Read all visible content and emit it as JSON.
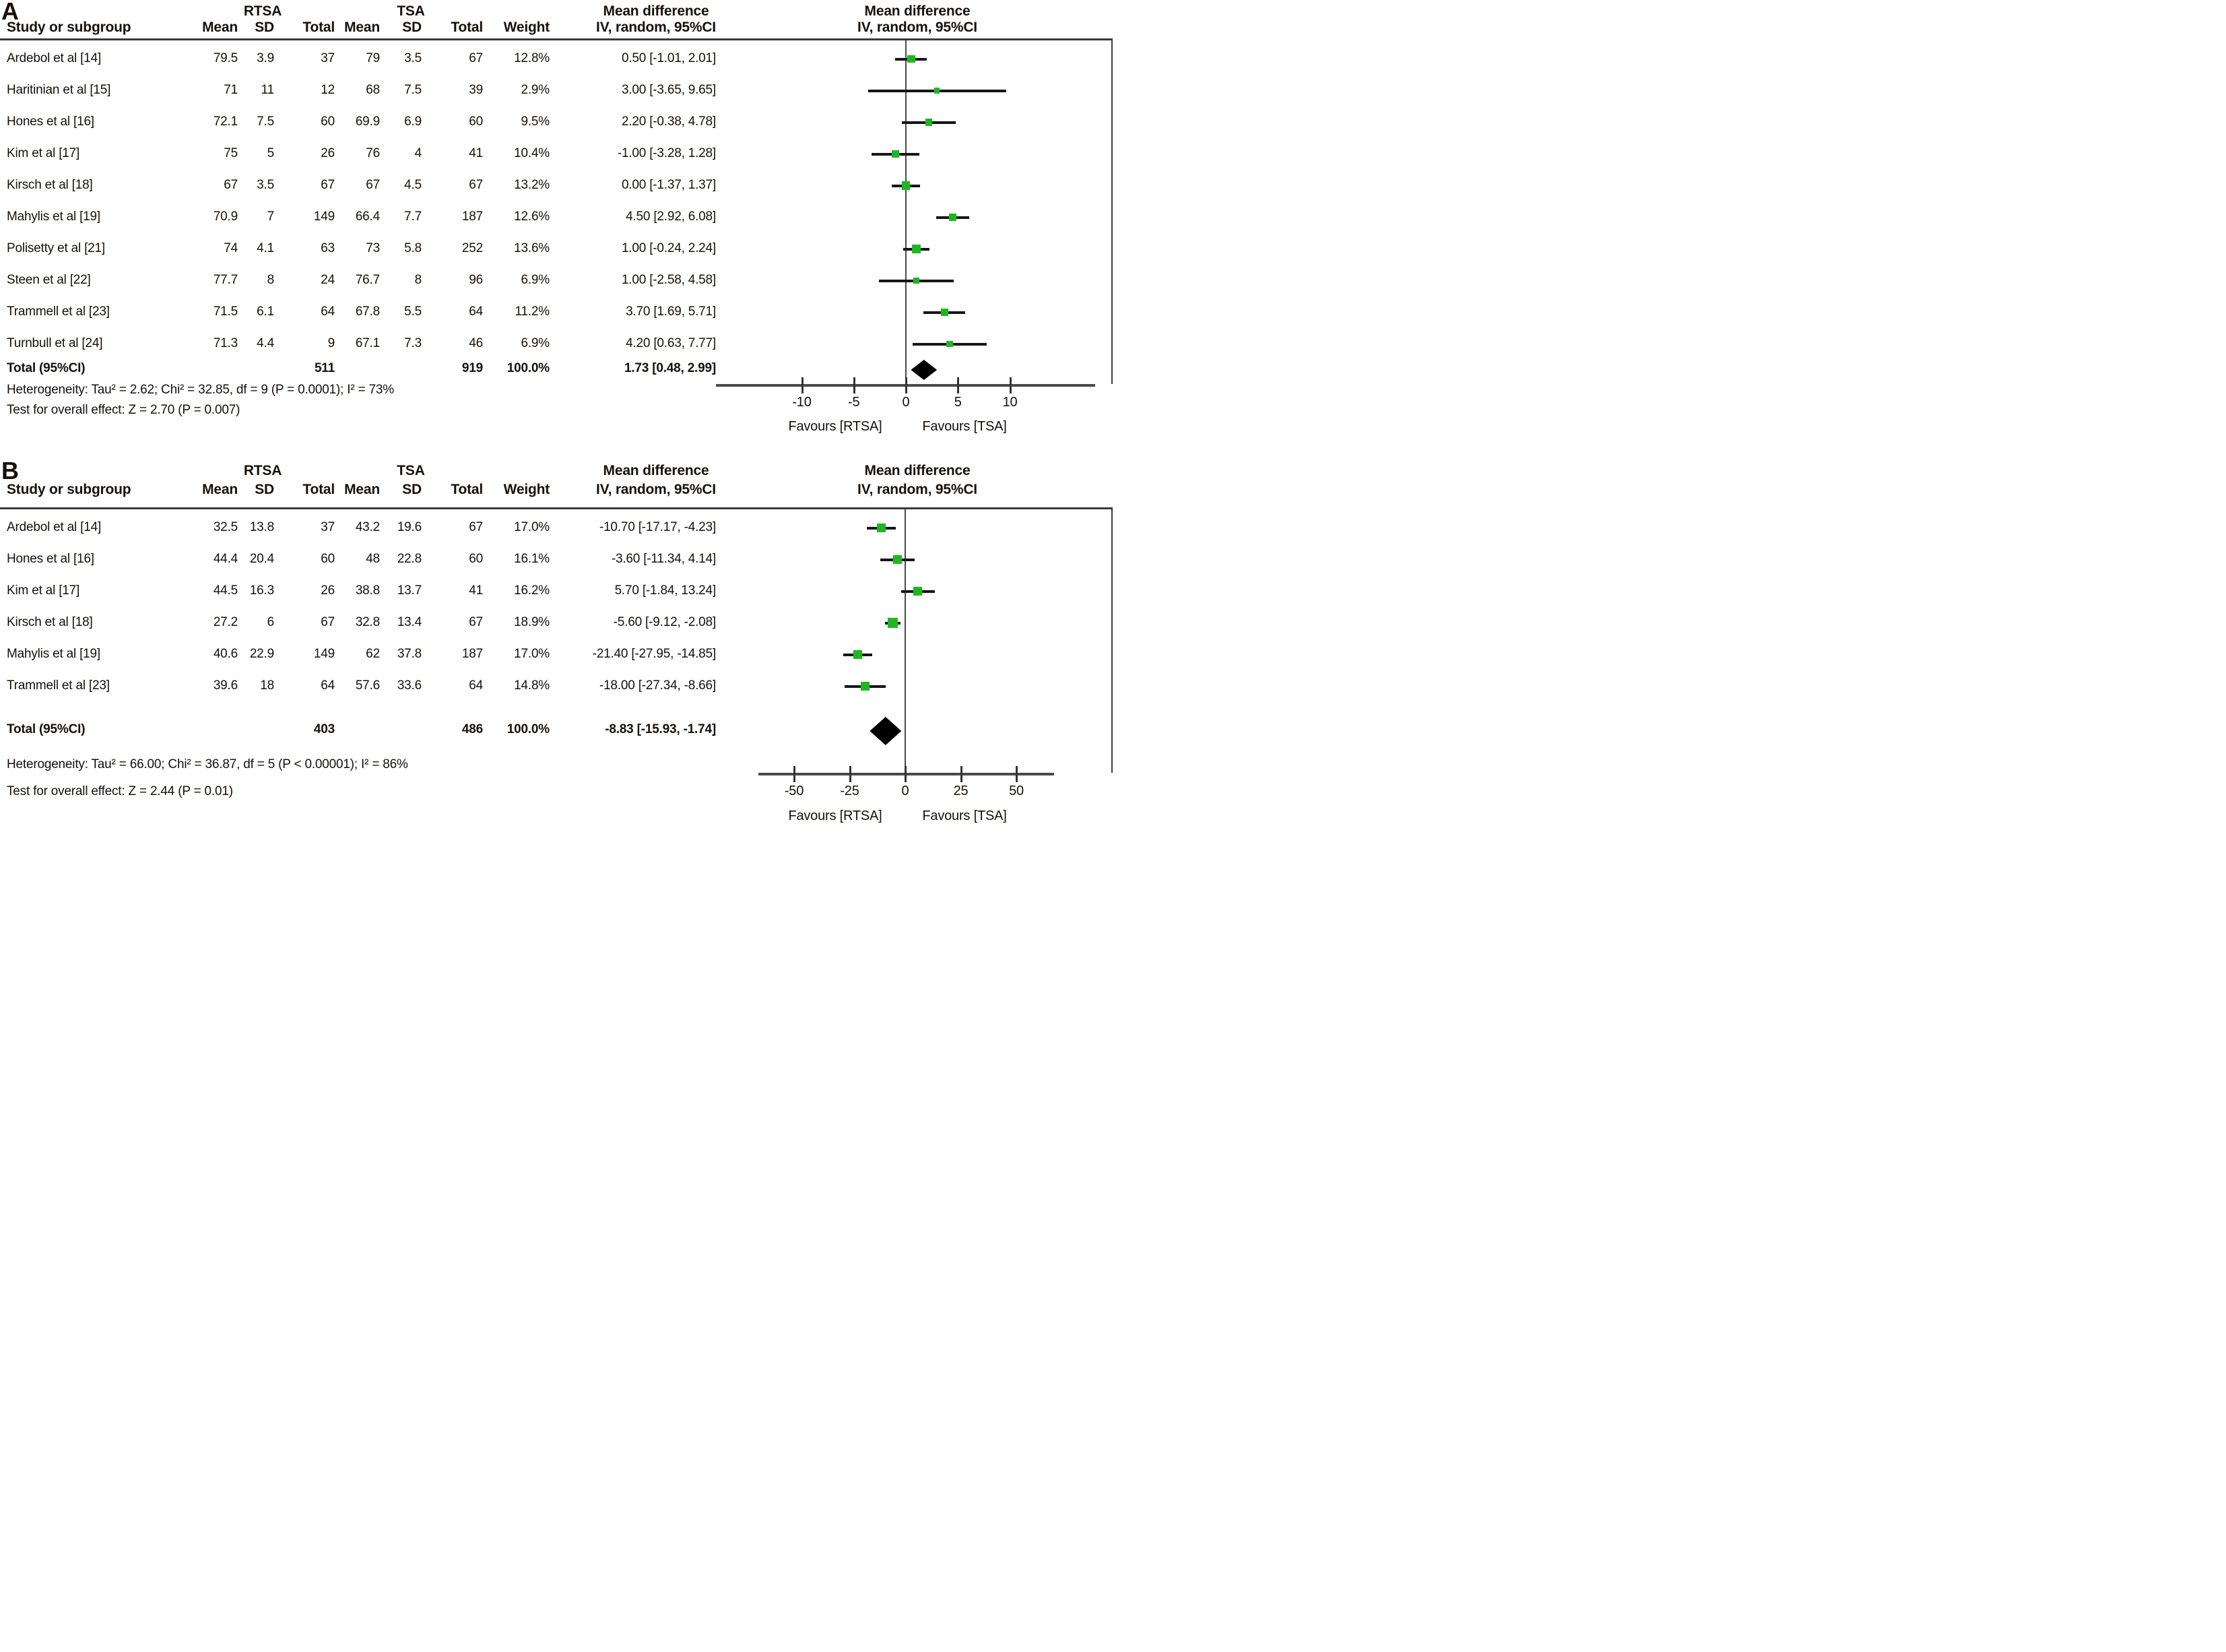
{
  "colors": {
    "marker_green": "#1eb722",
    "diamond_black": "#000000",
    "text": "#181008"
  },
  "chart_data": [
    {
      "type": "forest",
      "panel_label": "A",
      "header": {
        "study": "Study or subgroup",
        "group1": "RTSA",
        "group2": "TSA",
        "mean1": "Mean",
        "sd1": "SD",
        "total1": "Total",
        "mean2": "Mean",
        "sd2": "SD",
        "total2": "Total",
        "weight": "Weight",
        "md_line1": "Mean difference",
        "md_line2": "IV, random, 95%CI",
        "plot_line1": "Mean difference",
        "plot_line2": "IV, random, 95%CI"
      },
      "rows": [
        {
          "study": "Ardebol et al  [14]",
          "mean1": "79.5",
          "sd1": "3.9",
          "total1": "37",
          "mean2": "79",
          "sd2": "3.5",
          "total2": "67",
          "weight": "12.8%",
          "ci_text": "0.50 [-1.01, 2.01]",
          "est": 0.5,
          "lo": -1.01,
          "hi": 2.01,
          "weight_pct": 12.8
        },
        {
          "study": "Haritinian et al [15]",
          "mean1": "71",
          "sd1": "11",
          "total1": "12",
          "mean2": "68",
          "sd2": "7.5",
          "total2": "39",
          "weight": "2.9%",
          "ci_text": "3.00 [-3.65, 9.65]",
          "est": 3.0,
          "lo": -3.65,
          "hi": 9.65,
          "weight_pct": 2.9
        },
        {
          "study": "Hones et al [16]",
          "mean1": "72.1",
          "sd1": "7.5",
          "total1": "60",
          "mean2": "69.9",
          "sd2": "6.9",
          "total2": "60",
          "weight": "9.5%",
          "ci_text": "2.20 [-0.38, 4.78]",
          "est": 2.2,
          "lo": -0.38,
          "hi": 4.78,
          "weight_pct": 9.5
        },
        {
          "study": "Kim et al [17]",
          "mean1": "75",
          "sd1": "5",
          "total1": "26",
          "mean2": "76",
          "sd2": "4",
          "total2": "41",
          "weight": "10.4%",
          "ci_text": "-1.00 [-3.28, 1.28]",
          "est": -1.0,
          "lo": -3.28,
          "hi": 1.28,
          "weight_pct": 10.4
        },
        {
          "study": "Kirsch et al [18]",
          "mean1": "67",
          "sd1": "3.5",
          "total1": "67",
          "mean2": "67",
          "sd2": "4.5",
          "total2": "67",
          "weight": "13.2%",
          "ci_text": "0.00 [-1.37, 1.37]",
          "est": 0.0,
          "lo": -1.37,
          "hi": 1.37,
          "weight_pct": 13.2
        },
        {
          "study": "Mahylis et al [19]",
          "mean1": "70.9",
          "sd1": "7",
          "total1": "149",
          "mean2": "66.4",
          "sd2": "7.7",
          "total2": "187",
          "weight": "12.6%",
          "ci_text": "4.50 [2.92, 6.08]",
          "est": 4.5,
          "lo": 2.92,
          "hi": 6.08,
          "weight_pct": 12.6
        },
        {
          "study": "Polisetty et al [21]",
          "mean1": "74",
          "sd1": "4.1",
          "total1": "63",
          "mean2": "73",
          "sd2": "5.8",
          "total2": "252",
          "weight": "13.6%",
          "ci_text": "1.00 [-0.24, 2.24]",
          "est": 1.0,
          "lo": -0.24,
          "hi": 2.24,
          "weight_pct": 13.6
        },
        {
          "study": "Steen et al [22]",
          "mean1": "77.7",
          "sd1": "8",
          "total1": "24",
          "mean2": "76.7",
          "sd2": "8",
          "total2": "96",
          "weight": "6.9%",
          "ci_text": "1.00 [-2.58, 4.58]",
          "est": 1.0,
          "lo": -2.58,
          "hi": 4.58,
          "weight_pct": 6.9
        },
        {
          "study": "Trammell et al [23]",
          "mean1": "71.5",
          "sd1": "6.1",
          "total1": "64",
          "mean2": "67.8",
          "sd2": "5.5",
          "total2": "64",
          "weight": "11.2%",
          "ci_text": "3.70 [1.69, 5.71]",
          "est": 3.7,
          "lo": 1.69,
          "hi": 5.71,
          "weight_pct": 11.2
        },
        {
          "study": "Turnbull et al [24]",
          "mean1": "71.3",
          "sd1": "4.4",
          "total1": "9",
          "mean2": "67.1",
          "sd2": "7.3",
          "total2": "46",
          "weight": "6.9%",
          "ci_text": "4.20 [0.63, 7.77]",
          "est": 4.2,
          "lo": 0.63,
          "hi": 7.77,
          "weight_pct": 6.9
        }
      ],
      "total_row": {
        "label": "Total (95%CI)",
        "total1": "511",
        "total2": "919",
        "weight": "100.0%",
        "ci_text": "1.73 [0.48, 2.99]",
        "est": 1.73,
        "lo": 0.48,
        "hi": 2.99
      },
      "heterogeneity": "Heterogeneity: Tau² = 2.62; Chi² = 32.85, df = 9 (P  = 0.0001); I² = 73%",
      "overall_test": "Test for overall effect: Z = 2.70 (P  = 0.007)",
      "axis": {
        "ticks": [
          -10,
          -5,
          0,
          5,
          10
        ],
        "favours_left": "Favours [RTSA]",
        "favours_right": "Favours [TSA]"
      }
    },
    {
      "type": "forest",
      "panel_label": "B",
      "header": {
        "study": "Study or subgroup",
        "group1": "RTSA",
        "group2": "TSA",
        "mean1": "Mean",
        "sd1": "SD",
        "total1": "Total",
        "mean2": "Mean",
        "sd2": "SD",
        "total2": "Total",
        "weight": "Weight",
        "md_line1": "Mean difference",
        "md_line2": "IV, random, 95%CI",
        "plot_line1": "Mean difference",
        "plot_line2": "IV, random, 95%CI"
      },
      "rows": [
        {
          "study": "Ardebol et al  [14]",
          "mean1": "32.5",
          "sd1": "13.8",
          "total1": "37",
          "mean2": "43.2",
          "sd2": "19.6",
          "total2": "67",
          "weight": "17.0%",
          "ci_text": "-10.70 [-17.17, -4.23]",
          "est": -10.7,
          "lo": -17.17,
          "hi": -4.23,
          "weight_pct": 17.0
        },
        {
          "study": "Hones et al [16]",
          "mean1": "44.4",
          "sd1": "20.4",
          "total1": "60",
          "mean2": "48",
          "sd2": "22.8",
          "total2": "60",
          "weight": "16.1%",
          "ci_text": "-3.60 [-11.34, 4.14]",
          "est": -3.6,
          "lo": -11.34,
          "hi": 4.14,
          "weight_pct": 16.1
        },
        {
          "study": "Kim et al [17]",
          "mean1": "44.5",
          "sd1": "16.3",
          "total1": "26",
          "mean2": "38.8",
          "sd2": "13.7",
          "total2": "41",
          "weight": "16.2%",
          "ci_text": "5.70 [-1.84, 13.24]",
          "est": 5.7,
          "lo": -1.84,
          "hi": 13.24,
          "weight_pct": 16.2
        },
        {
          "study": "Kirsch et al [18]",
          "mean1": "27.2",
          "sd1": "6",
          "total1": "67",
          "mean2": "32.8",
          "sd2": "13.4",
          "total2": "67",
          "weight": "18.9%",
          "ci_text": "-5.60 [-9.12, -2.08]",
          "est": -5.6,
          "lo": -9.12,
          "hi": -2.08,
          "weight_pct": 18.9
        },
        {
          "study": "Mahylis et al [19]",
          "mean1": "40.6",
          "sd1": "22.9",
          "total1": "149",
          "mean2": "62",
          "sd2": "37.8",
          "total2": "187",
          "weight": "17.0%",
          "ci_text": "-21.40 [-27.95, -14.85]",
          "est": -21.4,
          "lo": -27.95,
          "hi": -14.85,
          "weight_pct": 17.0
        },
        {
          "study": "Trammell et al [23]",
          "mean1": "39.6",
          "sd1": "18",
          "total1": "64",
          "mean2": "57.6",
          "sd2": "33.6",
          "total2": "64",
          "weight": "14.8%",
          "ci_text": "-18.00 [-27.34, -8.66]",
          "est": -18.0,
          "lo": -27.34,
          "hi": -8.66,
          "weight_pct": 14.8
        }
      ],
      "total_row": {
        "label": "Total (95%CI)",
        "total1": "403",
        "total2": "486",
        "weight": "100.0%",
        "ci_text": "-8.83 [-15.93, -1.74]",
        "est": -8.83,
        "lo": -15.93,
        "hi": -1.74
      },
      "heterogeneity": "Heterogeneity: Tau² = 66.00; Chi² = 36.87, df = 5 (P  < 0.00001); I² = 86%",
      "overall_test": "Test for overall effect: Z = 2.44 (P  = 0.01)",
      "axis": {
        "ticks": [
          -50,
          -25,
          0,
          25,
          50
        ],
        "favours_left": "Favours [RTSA]",
        "favours_right": "Favours [TSA]"
      }
    }
  ]
}
